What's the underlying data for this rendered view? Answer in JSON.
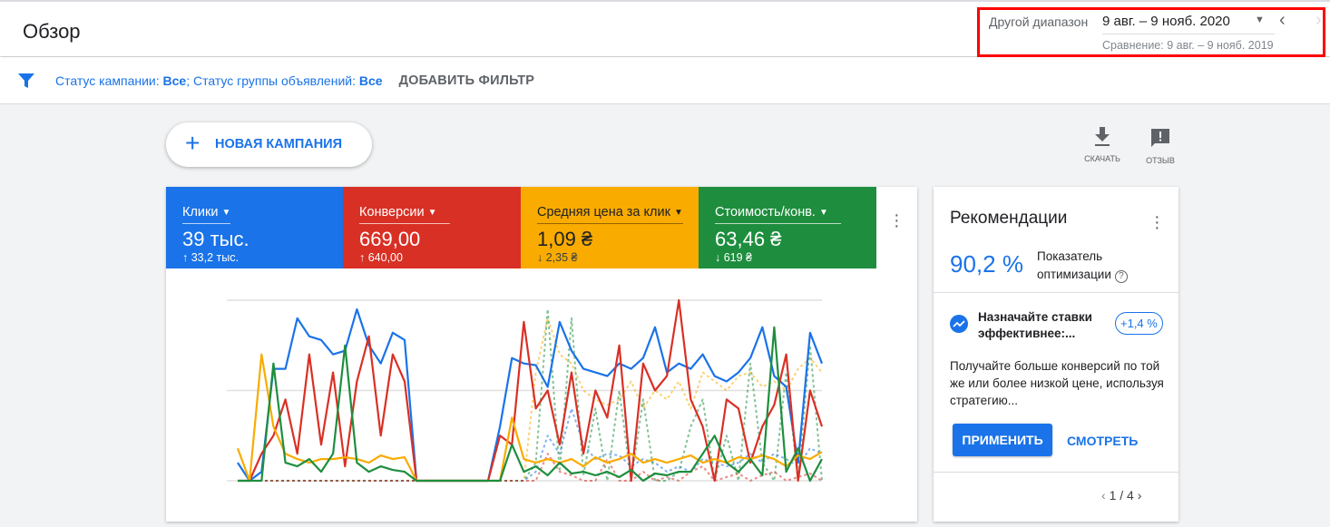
{
  "header": {
    "title": "Обзор"
  },
  "date_range": {
    "label": "Другой диапазон",
    "value": "9 авг. – 9 нояб. 2020",
    "comparison": "Сравнение: 9 авг. – 9 нояб. 2019"
  },
  "filter": {
    "prefix1": "Статус кампании: ",
    "value1": "Все",
    "sep": "; Статус группы объявлений: ",
    "value2": "Все",
    "add_filter": "ДОБАВИТЬ ФИЛЬТР"
  },
  "toolbar": {
    "new_campaign": "НОВАЯ КАМПАНИЯ",
    "download": "СКАЧАТЬ",
    "feedback": "ОТЗЫВ"
  },
  "metrics": [
    {
      "name": "Клики",
      "value": "39 тыс.",
      "change": "↑ 33,2 тыс.",
      "color": "#1a73e8"
    },
    {
      "name": "Конверсии",
      "value": "669,00",
      "change": "↑ 640,00",
      "color": "#d93025"
    },
    {
      "name": "Средняя цена за клик",
      "value": "1,09 ₴",
      "change": "↓ 2,35 ₴",
      "color": "#f9ab00"
    },
    {
      "name": "Стоимость/конв.",
      "value": "63,46 ₴",
      "change": "↓ 619 ₴",
      "color": "#1e8e3e"
    }
  ],
  "chart_data": {
    "type": "line",
    "title": "",
    "xlabel": "",
    "ylabel": "",
    "grid": true,
    "note_scale": "relative",
    "series": [
      {
        "name": "Клики",
        "color": "#1a73e8",
        "style": "solid",
        "values": [
          10,
          0,
          5,
          62,
          62,
          90,
          80,
          78,
          70,
          72,
          95,
          75,
          65,
          82,
          78,
          0,
          0,
          0,
          0,
          0,
          0,
          0,
          30,
          68,
          65,
          64,
          52,
          88,
          72,
          62,
          60,
          58,
          65,
          62,
          68,
          85,
          60,
          65,
          62,
          70,
          58,
          55,
          60,
          68,
          85,
          58,
          52,
          10,
          82,
          65
        ]
      },
      {
        "name": "Конверсии",
        "color": "#d93025",
        "style": "solid",
        "values": [
          0,
          0,
          15,
          25,
          45,
          15,
          70,
          20,
          60,
          8,
          55,
          80,
          25,
          70,
          55,
          0,
          0,
          0,
          0,
          0,
          0,
          0,
          25,
          20,
          88,
          40,
          50,
          20,
          60,
          15,
          50,
          35,
          75,
          0,
          65,
          50,
          58,
          100,
          45,
          30,
          0,
          45,
          40,
          10,
          30,
          42,
          70,
          0,
          50,
          30
        ]
      },
      {
        "name": "Средняя цена за клик",
        "color": "#f9ab00",
        "style": "solid",
        "values": [
          18,
          0,
          70,
          30,
          15,
          12,
          10,
          12,
          12,
          13,
          12,
          10,
          14,
          12,
          13,
          0,
          0,
          0,
          0,
          0,
          0,
          0,
          0,
          35,
          12,
          10,
          12,
          10,
          12,
          8,
          13,
          10,
          12,
          15,
          10,
          12,
          10,
          12,
          14,
          10,
          12,
          10,
          13,
          12,
          14,
          12,
          8,
          14,
          12,
          16
        ]
      },
      {
        "name": "Стоимость/конв.",
        "color": "#1e8e3e",
        "style": "solid",
        "values": [
          0,
          0,
          0,
          65,
          10,
          8,
          12,
          5,
          15,
          75,
          10,
          5,
          8,
          6,
          5,
          0,
          0,
          0,
          0,
          0,
          0,
          0,
          0,
          20,
          5,
          8,
          3,
          10,
          4,
          5,
          3,
          5,
          2,
          6,
          0,
          4,
          3,
          5,
          5,
          15,
          25,
          10,
          5,
          12,
          3,
          85,
          5,
          18,
          0,
          12
        ]
      },
      {
        "color": "#f9ab00",
        "style": "dashed",
        "values": [
          0,
          0,
          0,
          0,
          0,
          0,
          0,
          0,
          0,
          0,
          0,
          0,
          0,
          0,
          0,
          0,
          0,
          0,
          0,
          0,
          0,
          0,
          0,
          0,
          0,
          60,
          90,
          70,
          65,
          50,
          45,
          42,
          45,
          55,
          40,
          50,
          45,
          55,
          40,
          60,
          55,
          50,
          58,
          60,
          52,
          55,
          50,
          62,
          68,
          60
        ]
      },
      {
        "color": "#1a73e8",
        "style": "dashed",
        "values": [
          0,
          0,
          0,
          0,
          0,
          0,
          0,
          0,
          0,
          0,
          0,
          0,
          0,
          0,
          0,
          0,
          0,
          0,
          0,
          0,
          0,
          0,
          0,
          0,
          0,
          5,
          25,
          15,
          40,
          20,
          12,
          15,
          14,
          8,
          12,
          10,
          5,
          8,
          5,
          12,
          10,
          8,
          10,
          15,
          10,
          15,
          12,
          8,
          18,
          15
        ]
      },
      {
        "color": "#1e8e3e",
        "style": "dashed",
        "values": [
          0,
          0,
          0,
          0,
          0,
          0,
          0,
          0,
          0,
          0,
          0,
          0,
          0,
          0,
          0,
          0,
          0,
          0,
          0,
          0,
          0,
          0,
          0,
          0,
          0,
          10,
          95,
          5,
          90,
          3,
          40,
          0,
          50,
          0,
          45,
          0,
          0,
          5,
          30,
          45,
          0,
          25,
          0,
          65,
          10,
          0,
          60,
          0,
          75,
          0
        ]
      },
      {
        "color": "#d93025",
        "style": "dashed",
        "values": [
          0,
          0,
          0,
          0,
          0,
          0,
          0,
          0,
          0,
          0,
          0,
          0,
          0,
          0,
          0,
          0,
          0,
          0,
          0,
          0,
          0,
          0,
          0,
          0,
          0,
          0,
          15,
          5,
          3,
          0,
          0,
          12,
          0,
          0,
          5,
          0,
          2,
          0,
          5,
          8,
          0,
          2,
          4,
          0,
          3,
          5,
          0,
          2,
          4,
          0
        ]
      }
    ]
  },
  "recommendations": {
    "title": "Рекомендации",
    "score": "90,2 %",
    "score_label_1": "Показатель",
    "score_label_2": "оптимизации",
    "help": "?",
    "item_title": "Назначайте ставки эффективнее:...",
    "item_badge": "+1,4 %",
    "item_desc": "Получайте больше конверсий по той же или более низкой цене, используя стратегию...",
    "apply": "ПРИМЕНИТЬ",
    "view": "СМОТРЕТЬ",
    "pager": "1 / 4"
  }
}
